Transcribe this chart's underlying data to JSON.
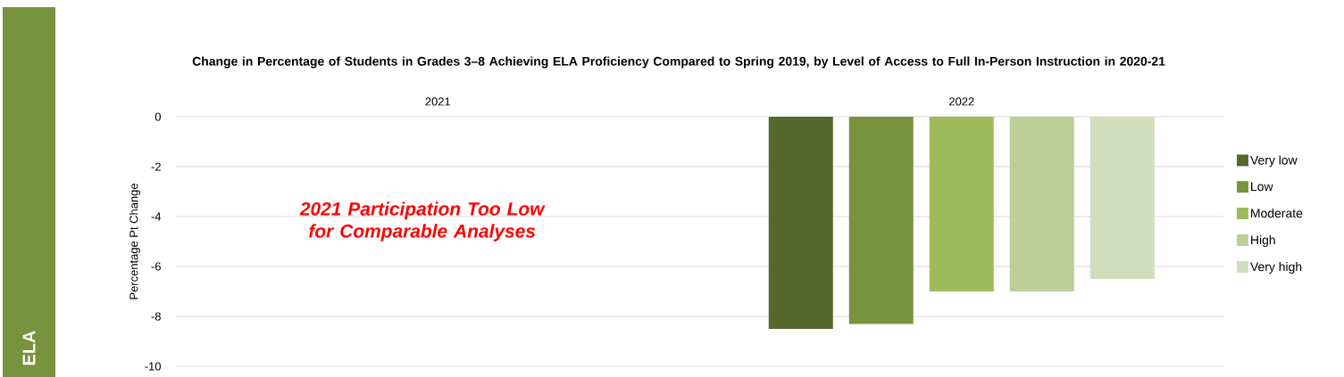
{
  "chart_data": {
    "type": "bar",
    "title": "Change in Percentage of Students in Grades 3–8 Achieving ELA Proficiency Compared to Spring 2019, by Level of Access to Full In-Person Instruction in 2020-21",
    "ylabel": "Percentage Pt Change",
    "categories": [
      "2021",
      "2022"
    ],
    "series": [
      {
        "name": "Very low",
        "color": "#55682d",
        "values": [
          null,
          -8.5
        ]
      },
      {
        "name": "Low",
        "color": "#78933e",
        "values": [
          null,
          -8.3
        ]
      },
      {
        "name": "Moderate",
        "color": "#9dbb5a",
        "values": [
          null,
          -7
        ]
      },
      {
        "name": "High",
        "color": "#bbcf96",
        "values": [
          null,
          -7
        ]
      },
      {
        "name": "Very high",
        "color": "#d1debd",
        "values": [
          null,
          -6.5
        ]
      }
    ],
    "ylim": [
      -10,
      0
    ],
    "yticks": [
      -10,
      -8,
      -6,
      -4,
      -2,
      0
    ],
    "grid": "y",
    "legend": "right",
    "annotations": [
      "2021 Participation Too Low for Comparable Analyses",
      "ELA"
    ]
  }
}
